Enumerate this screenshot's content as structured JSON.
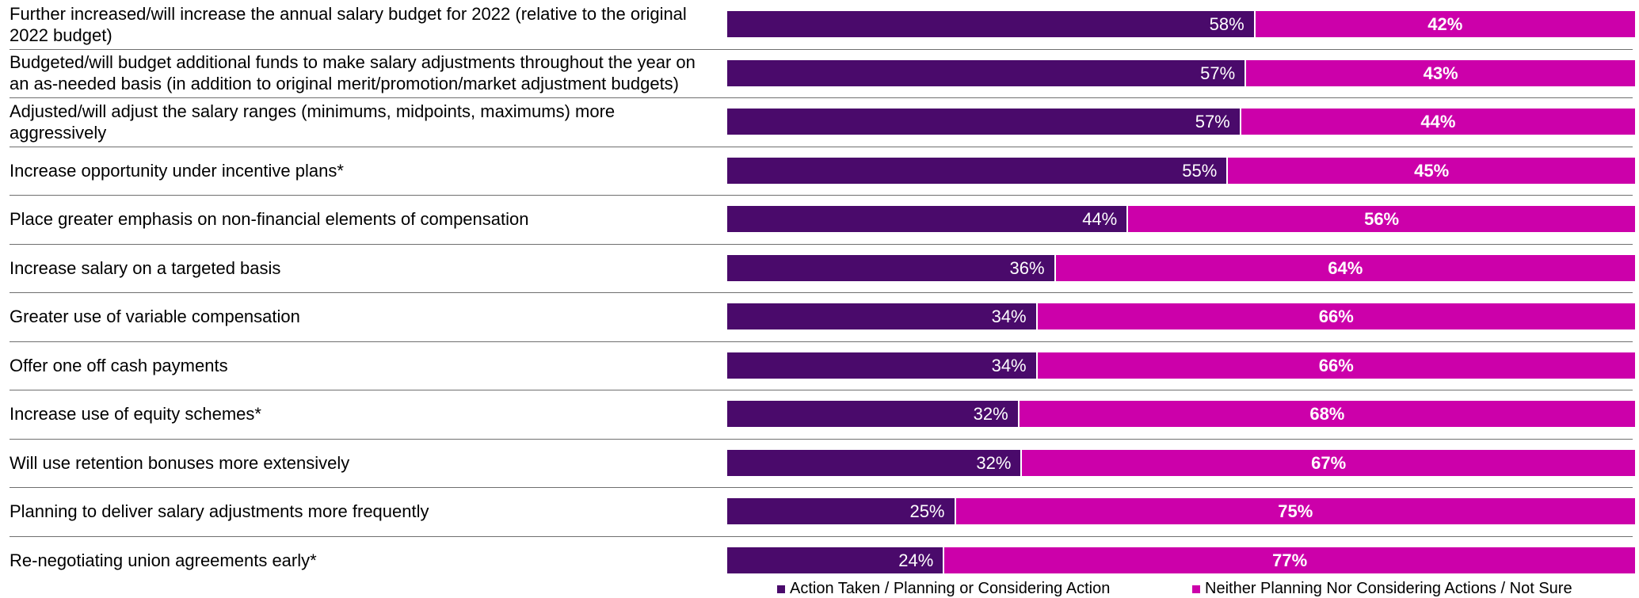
{
  "chart_data": {
    "type": "bar",
    "orientation": "horizontal",
    "stacked": true,
    "categories": [
      "Further increased/will increase the annual salary budget for 2022 (relative to the original 2022 budget)",
      "Budgeted/will budget additional funds to make salary adjustments throughout the year on an as-needed basis (in addition to original merit/promotion/market adjustment budgets)",
      "Adjusted/will adjust the salary ranges (minimums, midpoints, maximums) more aggressively",
      "Increase opportunity under incentive plans*",
      "Place greater emphasis on non-financial elements of compensation",
      "Increase salary on a targeted basis",
      "Greater use of variable compensation",
      "Offer one off cash payments",
      "Increase use of equity schemes*",
      "Will use retention bonuses more extensively",
      "Planning to deliver salary adjustments more frequently",
      "Re-negotiating union agreements early*"
    ],
    "series": [
      {
        "name": "Action Taken / Planning or Considering Action",
        "color": "#4a0a6b",
        "values": [
          58,
          57,
          57,
          55,
          44,
          36,
          34,
          34,
          32,
          32,
          25,
          24
        ],
        "labels": [
          "58%",
          "57%",
          "57%",
          "55%",
          "44%",
          "36%",
          "34%",
          "34%",
          "32%",
          "32%",
          "25%",
          "24%"
        ]
      },
      {
        "name": "Neither Planning Nor Considering Actions / Not Sure",
        "color": "#cc00aa",
        "values": [
          42,
          43,
          44,
          45,
          56,
          64,
          66,
          66,
          68,
          67,
          75,
          77
        ],
        "labels": [
          "42%",
          "43%",
          "44%",
          "45%",
          "56%",
          "64%",
          "66%",
          "66%",
          "68%",
          "67%",
          "75%",
          "77%"
        ]
      }
    ],
    "xlim": [
      0,
      100
    ],
    "legend_position": "bottom",
    "grid": false
  }
}
